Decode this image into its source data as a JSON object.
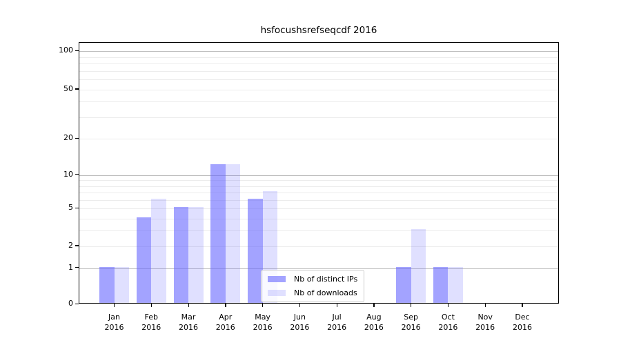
{
  "title": "hsfocushsrefseqcdf 2016",
  "chart_data": {
    "type": "bar",
    "title": "hsfocushsrefseqcdf 2016",
    "categories": [
      "Jan 2016",
      "Feb 2016",
      "Mar 2016",
      "Apr 2016",
      "May 2016",
      "Jun 2016",
      "Jul 2016",
      "Aug 2016",
      "Sep 2016",
      "Oct 2016",
      "Nov 2016",
      "Dec 2016"
    ],
    "series": [
      {
        "name": "Nb of distinct IPs",
        "values": [
          1,
          4,
          5,
          12,
          6,
          0,
          0,
          0,
          1,
          1,
          0,
          0
        ],
        "color": "rgba(102,102,255,0.6)"
      },
      {
        "name": "Nb of downloads",
        "values": [
          1,
          6,
          5,
          12,
          7,
          0,
          0,
          0,
          3,
          1,
          0,
          0
        ],
        "color": "rgba(102,102,255,0.2)"
      }
    ],
    "xlabel": "",
    "ylabel": "",
    "y_scale": "log-like: position = log10(1 + y/1.1)",
    "y_ticks": [
      0,
      1,
      2,
      5,
      10,
      20,
      50,
      100
    ],
    "y_major_gridlines": [
      1,
      10,
      100
    ],
    "y_minor_gridlines": [
      2,
      3,
      4,
      5,
      6,
      7,
      8,
      9,
      20,
      30,
      40,
      50,
      60,
      70,
      80,
      90
    ],
    "ylim": [
      0,
      112
    ],
    "grid": true,
    "legend": {
      "position": "lower center",
      "items": [
        "Nb of distinct IPs",
        "Nb of downloads"
      ]
    },
    "colors": {
      "bar_distinct_ips": "rgba(102,102,255,0.6)",
      "bar_downloads": "rgba(102,102,255,0.2)",
      "grid_major": "#bdbdbd",
      "grid_minor": "#ececec",
      "spine": "#000000",
      "text": "#000000"
    }
  }
}
